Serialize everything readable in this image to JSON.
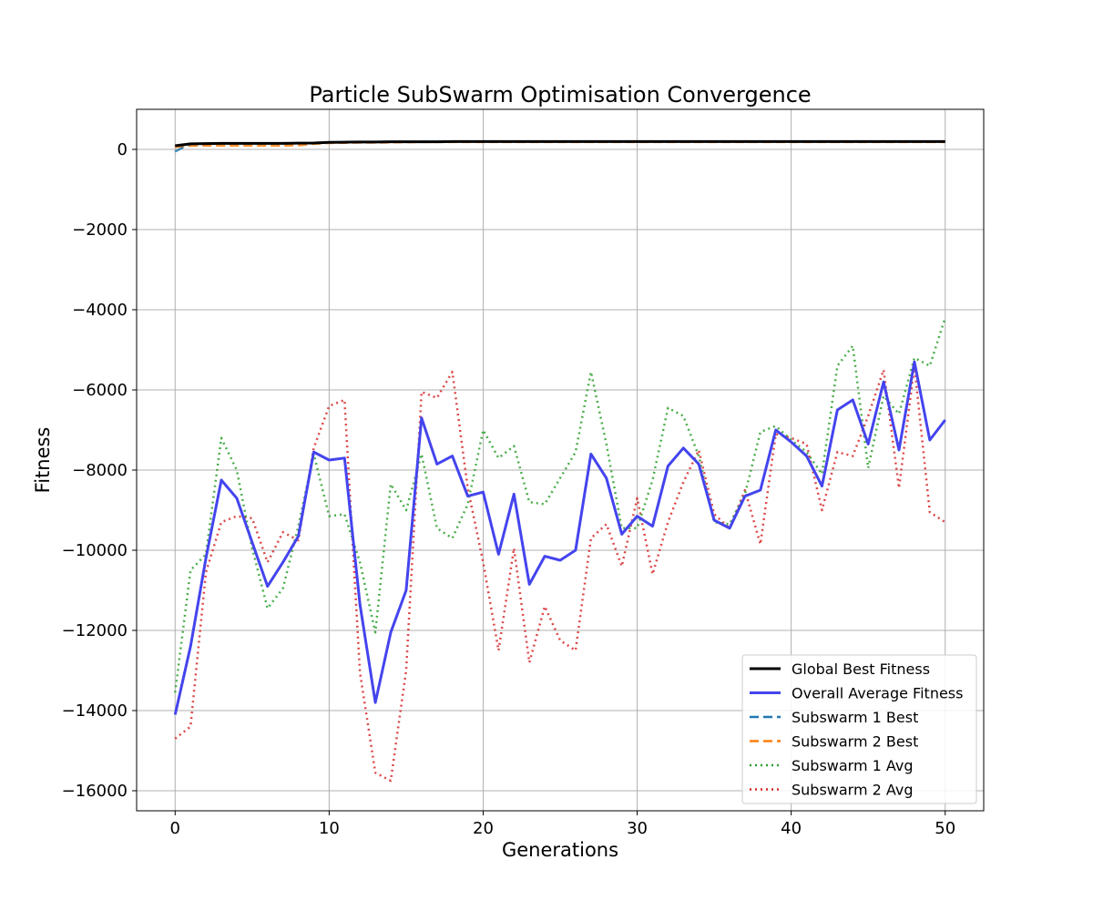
{
  "chart_data": {
    "type": "line",
    "title": "Particle SubSwarm Optimisation Convergence",
    "xlabel": "Generations",
    "ylabel": "Fitness",
    "xlim": [
      -2.5,
      52.5
    ],
    "ylim": [
      -16500,
      1000
    ],
    "xticks": [
      0,
      10,
      20,
      30,
      40,
      50
    ],
    "yticks": [
      0,
      -2000,
      -4000,
      -6000,
      -8000,
      -10000,
      -12000,
      -14000,
      -16000
    ],
    "grid": true,
    "legend_position": "lower-right",
    "x": [
      0,
      1,
      2,
      3,
      4,
      5,
      6,
      7,
      8,
      9,
      10,
      11,
      12,
      13,
      14,
      15,
      16,
      17,
      18,
      19,
      20,
      21,
      22,
      23,
      24,
      25,
      26,
      27,
      28,
      29,
      30,
      31,
      32,
      33,
      34,
      35,
      36,
      37,
      38,
      39,
      40,
      41,
      42,
      43,
      44,
      45,
      46,
      47,
      48,
      49,
      50
    ],
    "series": [
      {
        "name": "Global Best Fitness",
        "color": "#000000",
        "style": "solid",
        "values": [
          90,
          140,
          145,
          150,
          150,
          150,
          150,
          150,
          155,
          160,
          175,
          180,
          185,
          185,
          190,
          190,
          190,
          190,
          195,
          195,
          195,
          195,
          195,
          195,
          195,
          195,
          195,
          195,
          195,
          195,
          195,
          195,
          195,
          195,
          195,
          195,
          195,
          195,
          195,
          195,
          195,
          195,
          195,
          195,
          195,
          195,
          195,
          195,
          195,
          195,
          195
        ]
      },
      {
        "name": "Overall Average Fitness",
        "color": "#4444ee",
        "style": "solid",
        "values": [
          -14100,
          -12400,
          -10200,
          -8250,
          -8700,
          -9800,
          -10900,
          -10300,
          -9650,
          -7550,
          -7750,
          -7700,
          -11350,
          -13800,
          -12050,
          -11000,
          -6700,
          -7850,
          -7650,
          -8650,
          -8550,
          -10100,
          -8600,
          -10850,
          -10150,
          -10250,
          -10000,
          -7600,
          -8200,
          -9600,
          -9150,
          -9400,
          -7900,
          -7450,
          -7850,
          -9250,
          -9450,
          -8650,
          -8500,
          -7000,
          -7300,
          -7650,
          -8400,
          -6500,
          -6250,
          -7350,
          -5800,
          -7500,
          -5300,
          -7250,
          -6750
        ]
      },
      {
        "name": "Subswarm 1 Best",
        "color": "#1f77b4",
        "style": "dashed",
        "values": [
          -50,
          140,
          145,
          150,
          150,
          150,
          150,
          150,
          155,
          160,
          175,
          180,
          185,
          185,
          190,
          190,
          190,
          190,
          195,
          195,
          195,
          195,
          195,
          195,
          195,
          195,
          195,
          195,
          195,
          195,
          195,
          195,
          195,
          195,
          195,
          195,
          195,
          195,
          195,
          195,
          195,
          195,
          195,
          195,
          195,
          195,
          195,
          195,
          195,
          195,
          195
        ]
      },
      {
        "name": "Subswarm 2 Best",
        "color": "#ff7f0e",
        "style": "dashed",
        "values": [
          60,
          90,
          95,
          95,
          95,
          95,
          95,
          95,
          100,
          140,
          160,
          165,
          170,
          170,
          175,
          180,
          185,
          185,
          185,
          185,
          185,
          185,
          185,
          185,
          185,
          185,
          185,
          185,
          185,
          185,
          185,
          185,
          185,
          185,
          185,
          185,
          185,
          185,
          185,
          185,
          185,
          185,
          185,
          185,
          185,
          185,
          185,
          185,
          185,
          185,
          185
        ]
      },
      {
        "name": "Subswarm 1 Avg",
        "color": "#2ca02c",
        "style": "dotted",
        "values": [
          -13550,
          -10500,
          -10100,
          -7200,
          -8000,
          -9950,
          -11450,
          -10950,
          -9400,
          -7600,
          -9150,
          -9100,
          -10300,
          -12050,
          -8350,
          -9000,
          -7600,
          -9450,
          -9700,
          -8850,
          -7000,
          -7700,
          -7400,
          -8800,
          -8850,
          -8200,
          -7550,
          -5550,
          -7350,
          -9450,
          -9450,
          -8250,
          -6450,
          -6650,
          -7650,
          -9300,
          -9350,
          -8600,
          -7050,
          -6900,
          -7250,
          -7550,
          -8100,
          -5400,
          -4900,
          -7950,
          -6150,
          -6600,
          -5200,
          -5400,
          -4200
        ]
      },
      {
        "name": "Subswarm 2 Avg",
        "color": "#d62728",
        "style": "dotted",
        "values": [
          -14700,
          -14400,
          -10550,
          -9300,
          -9150,
          -9200,
          -10300,
          -9550,
          -9750,
          -7450,
          -6400,
          -6250,
          -13050,
          -15550,
          -15750,
          -13000,
          -6050,
          -6200,
          -5550,
          -8450,
          -10300,
          -12500,
          -9950,
          -12800,
          -11400,
          -12250,
          -12500,
          -9700,
          -9350,
          -10400,
          -8700,
          -10600,
          -9300,
          -8300,
          -7500,
          -9100,
          -9450,
          -8500,
          -9850,
          -7100,
          -7200,
          -7350,
          -9000,
          -7550,
          -7650,
          -6650,
          -5500,
          -8450,
          -5400,
          -9050,
          -9300
        ]
      }
    ]
  }
}
